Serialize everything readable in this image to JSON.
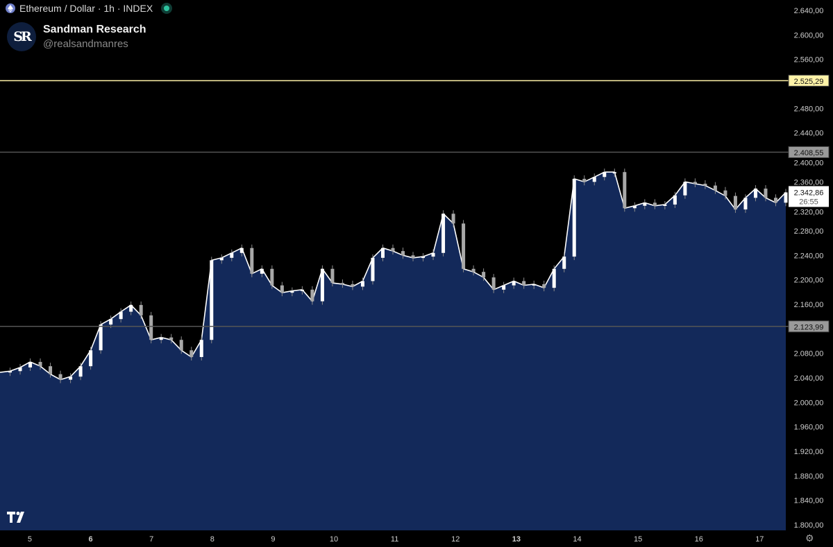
{
  "header": {
    "symbol_title": "Ethereum / Dollar · 1h · INDEX",
    "symbol_icon": "ethereum-icon",
    "status_color": "#2ec4a0"
  },
  "brand": {
    "logo_text": "SR",
    "name": "Sandman Research",
    "handle": "@realsandmanres"
  },
  "footer": {
    "watermark": "TV",
    "settings_icon": "gear-icon"
  },
  "chart_data": {
    "type": "area",
    "title": "Ethereum / Dollar · 1h · INDEX",
    "xlabel": "",
    "ylabel": "",
    "ylim": [
      1800,
      2640
    ],
    "xlim": [
      4.51,
      17.43
    ],
    "grid": false,
    "fill_color": "#13295a",
    "line_color": "#ffffff",
    "values": [
      2049,
      2051,
      2057,
      2066,
      2059,
      2046,
      2037,
      2042,
      2059,
      2085,
      2127,
      2136,
      2148,
      2159,
      2142,
      2102,
      2106,
      2102,
      2085,
      2074,
      2102,
      2232,
      2236,
      2244,
      2252,
      2210,
      2218,
      2191,
      2179,
      2182,
      2184,
      2165,
      2218,
      2195,
      2193,
      2189,
      2198,
      2236,
      2252,
      2247,
      2240,
      2236,
      2238,
      2244,
      2308,
      2292,
      2218,
      2213,
      2204,
      2184,
      2191,
      2198,
      2191,
      2193,
      2187,
      2218,
      2238,
      2365,
      2360,
      2368,
      2376,
      2376,
      2317,
      2321,
      2326,
      2321,
      2323,
      2338,
      2360,
      2357,
      2354,
      2346,
      2337,
      2315,
      2334,
      2349,
      2334,
      2326,
      2342.86
    ],
    "x_ticks": [
      {
        "value": 5,
        "label": "5",
        "bold": false
      },
      {
        "value": 6,
        "label": "6",
        "bold": true
      },
      {
        "value": 7,
        "label": "7",
        "bold": false
      },
      {
        "value": 8,
        "label": "8",
        "bold": false
      },
      {
        "value": 9,
        "label": "9",
        "bold": false
      },
      {
        "value": 10,
        "label": "10",
        "bold": false
      },
      {
        "value": 11,
        "label": "11",
        "bold": false
      },
      {
        "value": 12,
        "label": "12",
        "bold": false
      },
      {
        "value": 13,
        "label": "13",
        "bold": true
      },
      {
        "value": 14,
        "label": "14",
        "bold": false
      },
      {
        "value": 15,
        "label": "15",
        "bold": false
      },
      {
        "value": 16,
        "label": "16",
        "bold": false
      },
      {
        "value": 17,
        "label": "17",
        "bold": false
      }
    ],
    "y_ticks": [
      {
        "value": 2640,
        "label": "2.640,00"
      },
      {
        "value": 2600,
        "label": "2.600,00"
      },
      {
        "value": 2560,
        "label": "2.560,00"
      },
      {
        "value": 2480,
        "label": "2.480,00"
      },
      {
        "value": 2440,
        "label": "2.440,00"
      },
      {
        "value": 2400,
        "label": "2.400,00"
      },
      {
        "value": 2360,
        "label": "2.360,00"
      },
      {
        "value": 2320,
        "label": "2.320,00"
      },
      {
        "value": 2280,
        "label": "2.280,00"
      },
      {
        "value": 2240,
        "label": "2.240,00"
      },
      {
        "value": 2200,
        "label": "2.200,00"
      },
      {
        "value": 2160,
        "label": "2.160,00"
      },
      {
        "value": 2080,
        "label": "2.080,00"
      },
      {
        "value": 2040,
        "label": "2.040,00"
      },
      {
        "value": 2000,
        "label": "2.000,00"
      },
      {
        "value": 1960,
        "label": "1.960,00"
      },
      {
        "value": 1920,
        "label": "1.920,00"
      },
      {
        "value": 1880,
        "label": "1.880,00"
      },
      {
        "value": 1840,
        "label": "1.840,00"
      },
      {
        "value": 1800,
        "label": "1.800,00"
      }
    ],
    "horizontal_lines": [
      {
        "value": 2525.29,
        "label": "2.525,29",
        "color": "#fff3a8",
        "label_bg": "#fff3a8"
      },
      {
        "value": 2408.55,
        "label": "2.408,55",
        "color": "#555555",
        "label_bg": "#9a9a9a"
      },
      {
        "value": 2123.99,
        "label": "2.123,99",
        "color": "#555555",
        "label_bg": "#9a9a9a"
      }
    ],
    "last_price": {
      "value": 2342.86,
      "label": "2.342,86",
      "countdown": "26:55"
    }
  }
}
